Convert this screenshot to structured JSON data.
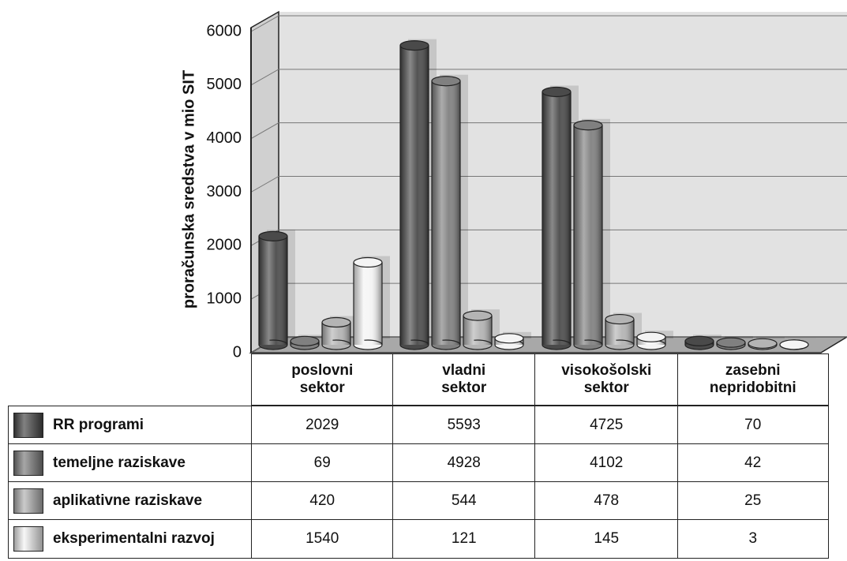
{
  "chart_data": {
    "type": "bar",
    "y_label": "proračunska sredstva v mio SIT",
    "categories": [
      "poslovni sektor",
      "vladni sektor",
      "visokošolski sektor",
      "zasebni nepridobitni"
    ],
    "series": [
      {
        "name": "RR programi",
        "color": "#4a4a4a",
        "values": [
          2029,
          5593,
          4725,
          70
        ]
      },
      {
        "name": "temeljne raziskave",
        "color": "#808080",
        "values": [
          69,
          4928,
          4102,
          42
        ]
      },
      {
        "name": "aplikativne raziskave",
        "color": "#b4b4b4",
        "values": [
          420,
          544,
          478,
          25
        ]
      },
      {
        "name": "eksperimentalni razvoj",
        "color": "#f4f4f4",
        "values": [
          1540,
          121,
          145,
          3
        ]
      }
    ],
    "ylim": [
      0,
      6000
    ],
    "yticks": [
      0,
      1000,
      2000,
      3000,
      4000,
      5000,
      6000
    ],
    "grid": true
  }
}
